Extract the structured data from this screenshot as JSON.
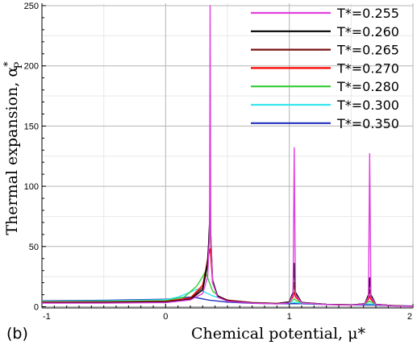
{
  "chart_data": {
    "type": "line",
    "panel_label": "(b)",
    "xlabel": "Chemical potential, μ*",
    "ylabel_main": "Thermal expansion, α",
    "ylabel_sup": "*",
    "ylabel_sub": "P",
    "xlim": [
      -1,
      2
    ],
    "ylim": [
      -1,
      252
    ],
    "xticks": [
      "-1",
      "0",
      "1",
      "2"
    ],
    "yticks": [
      "0",
      "50",
      "100",
      "150",
      "200",
      "250"
    ],
    "grid": true,
    "legend_position": "top-right",
    "series": [
      {
        "name": "T*=0.255",
        "color": "#e040e0",
        "points": [
          [
            -1,
            3.0
          ],
          [
            -0.5,
            3.0
          ],
          [
            0,
            3.4
          ],
          [
            0.2,
            5.6
          ],
          [
            0.3,
            11
          ],
          [
            0.34,
            25
          ],
          [
            0.355,
            60
          ],
          [
            0.36,
            250
          ],
          [
            0.365,
            60
          ],
          [
            0.38,
            20
          ],
          [
            0.42,
            8
          ],
          [
            0.5,
            4.5
          ],
          [
            0.7,
            3.0
          ],
          [
            0.9,
            2.3
          ],
          [
            1.0,
            3.2
          ],
          [
            1.03,
            10
          ],
          [
            1.04,
            132
          ],
          [
            1.05,
            10
          ],
          [
            1.1,
            3.2
          ],
          [
            1.3,
            1.8
          ],
          [
            1.5,
            1.3
          ],
          [
            1.61,
            2.2
          ],
          [
            1.64,
            8
          ],
          [
            1.65,
            127
          ],
          [
            1.66,
            8
          ],
          [
            1.7,
            1.8
          ],
          [
            1.85,
            0.6
          ],
          [
            2,
            0.3
          ]
        ]
      },
      {
        "name": "T*=0.260",
        "color": "#000000",
        "points": [
          [
            -1,
            3.2
          ],
          [
            -0.5,
            3.3
          ],
          [
            0,
            3.8
          ],
          [
            0.2,
            6.0
          ],
          [
            0.3,
            14
          ],
          [
            0.34,
            35
          ],
          [
            0.355,
            70
          ],
          [
            0.36,
            105
          ],
          [
            0.365,
            60
          ],
          [
            0.38,
            22
          ],
          [
            0.42,
            9
          ],
          [
            0.5,
            5
          ],
          [
            0.7,
            3.2
          ],
          [
            0.9,
            2.5
          ],
          [
            1.0,
            4
          ],
          [
            1.03,
            12
          ],
          [
            1.04,
            36
          ],
          [
            1.05,
            12
          ],
          [
            1.1,
            3.5
          ],
          [
            1.3,
            2
          ],
          [
            1.5,
            1.4
          ],
          [
            1.61,
            2.4
          ],
          [
            1.64,
            10
          ],
          [
            1.65,
            24
          ],
          [
            1.66,
            10
          ],
          [
            1.7,
            2
          ],
          [
            1.85,
            0.7
          ],
          [
            2,
            0.4
          ]
        ]
      },
      {
        "name": "T*=0.265",
        "color": "#7a1010",
        "points": [
          [
            -1,
            3.5
          ],
          [
            -0.5,
            3.6
          ],
          [
            0,
            4.1
          ],
          [
            0.2,
            6.4
          ],
          [
            0.3,
            16
          ],
          [
            0.34,
            40
          ],
          [
            0.355,
            62
          ],
          [
            0.36,
            68
          ],
          [
            0.365,
            52
          ],
          [
            0.38,
            20
          ],
          [
            0.42,
            9
          ],
          [
            0.5,
            5
          ],
          [
            0.7,
            3.3
          ],
          [
            0.9,
            2.6
          ],
          [
            1.0,
            4
          ],
          [
            1.03,
            10
          ],
          [
            1.04,
            20
          ],
          [
            1.05,
            10
          ],
          [
            1.1,
            3.5
          ],
          [
            1.3,
            2
          ],
          [
            1.5,
            1.5
          ],
          [
            1.61,
            2.5
          ],
          [
            1.64,
            8
          ],
          [
            1.65,
            14
          ],
          [
            1.66,
            8
          ],
          [
            1.7,
            2
          ],
          [
            1.85,
            0.8
          ],
          [
            2,
            0.4
          ]
        ]
      },
      {
        "name": "T*=0.270",
        "color": "#ff0000",
        "points": [
          [
            -1,
            3.8
          ],
          [
            -0.5,
            3.9
          ],
          [
            0,
            4.5
          ],
          [
            0.2,
            7.2
          ],
          [
            0.3,
            18
          ],
          [
            0.34,
            38
          ],
          [
            0.355,
            47
          ],
          [
            0.36,
            48
          ],
          [
            0.365,
            42
          ],
          [
            0.38,
            20
          ],
          [
            0.42,
            9
          ],
          [
            0.5,
            5.5
          ],
          [
            0.7,
            3.5
          ],
          [
            0.9,
            2.7
          ],
          [
            1.0,
            4
          ],
          [
            1.03,
            8
          ],
          [
            1.04,
            12
          ],
          [
            1.05,
            8
          ],
          [
            1.1,
            3.5
          ],
          [
            1.3,
            2
          ],
          [
            1.5,
            1.5
          ],
          [
            1.61,
            2.5
          ],
          [
            1.64,
            6
          ],
          [
            1.65,
            9
          ],
          [
            1.66,
            6
          ],
          [
            1.7,
            2
          ],
          [
            1.85,
            0.8
          ],
          [
            2,
            0.4
          ]
        ]
      },
      {
        "name": "T*=0.280",
        "color": "#33cc33",
        "points": [
          [
            -1,
            4.1
          ],
          [
            -0.5,
            4.3
          ],
          [
            0,
            5.0
          ],
          [
            0.15,
            8
          ],
          [
            0.25,
            17
          ],
          [
            0.3,
            25
          ],
          [
            0.32,
            29
          ],
          [
            0.34,
            24
          ],
          [
            0.38,
            13
          ],
          [
            0.45,
            7
          ],
          [
            0.55,
            4.5
          ],
          [
            0.7,
            3.2
          ],
          [
            0.9,
            2.7
          ],
          [
            1.0,
            3.5
          ],
          [
            1.03,
            5.5
          ],
          [
            1.04,
            6.5
          ],
          [
            1.05,
            5.5
          ],
          [
            1.1,
            3.2
          ],
          [
            1.3,
            2
          ],
          [
            1.5,
            1.5
          ],
          [
            1.61,
            2.3
          ],
          [
            1.64,
            4
          ],
          [
            1.65,
            4.8
          ],
          [
            1.66,
            4
          ],
          [
            1.7,
            2
          ],
          [
            1.85,
            0.8
          ],
          [
            2,
            0.4
          ]
        ]
      },
      {
        "name": "T*=0.300",
        "color": "#33e6ee",
        "points": [
          [
            -1,
            4.5
          ],
          [
            -0.5,
            4.8
          ],
          [
            0,
            5.8
          ],
          [
            0.1,
            8
          ],
          [
            0.2,
            12
          ],
          [
            0.25,
            14.5
          ],
          [
            0.3,
            13
          ],
          [
            0.38,
            9
          ],
          [
            0.5,
            5.5
          ],
          [
            0.7,
            3.5
          ],
          [
            0.9,
            2.8
          ],
          [
            1.0,
            3.2
          ],
          [
            1.04,
            3.6
          ],
          [
            1.1,
            3.0
          ],
          [
            1.3,
            2
          ],
          [
            1.5,
            1.6
          ],
          [
            1.65,
            2.4
          ],
          [
            1.75,
            1.6
          ],
          [
            1.85,
            0.9
          ],
          [
            2,
            0.5
          ]
        ]
      },
      {
        "name": "T*=0.350",
        "color": "#2233bb",
        "points": [
          [
            -1,
            4.9
          ],
          [
            -0.5,
            5.3
          ],
          [
            0,
            6.2
          ],
          [
            0.1,
            7.2
          ],
          [
            0.2,
            8.0
          ],
          [
            0.25,
            7.5
          ],
          [
            0.35,
            5.5
          ],
          [
            0.5,
            3.8
          ],
          [
            0.7,
            2.8
          ],
          [
            0.9,
            2.4
          ],
          [
            1.0,
            2.6
          ],
          [
            1.1,
            2.5
          ],
          [
            1.3,
            1.8
          ],
          [
            1.5,
            1.5
          ],
          [
            1.65,
            1.6
          ],
          [
            1.8,
            1.0
          ],
          [
            2,
            0.6
          ]
        ]
      }
    ]
  },
  "colors": {
    "grid_major": "#b4b4b4",
    "grid_minor": "#e8e8e8",
    "axis": "#000000"
  }
}
